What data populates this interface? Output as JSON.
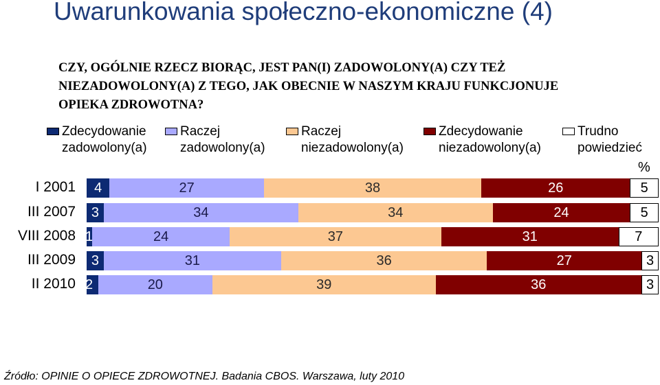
{
  "slide_title": "Uwarunkowania społeczno-ekonomiczne (4)",
  "question_lines": [
    "CZY, OGÓLNIE RZECZ BIORĄC, JEST PAN(I) ZADOWOLONY(A) CZY TEŻ",
    "NIEZADOWOLONY(A) Z TEGO, JAK OBECNIE W NASZYM KRAJU FUNKCJONUJE",
    "OPIEKA ZDROWOTNA?"
  ],
  "unit_label": "%",
  "source": "Źródło: OPINIE O OPIECE ZDROWOTNEJ. Badania CBOS. Warszawa, luty 2010",
  "chart_data": {
    "type": "bar",
    "orientation": "horizontal",
    "stacked": true,
    "normalized_percent": true,
    "legend_position": "top",
    "grid": false,
    "xlim": [
      0,
      100
    ],
    "categories": [
      "I 2001",
      "III 2007",
      "VIII 2008",
      "III 2009",
      "II 2010"
    ],
    "series": [
      {
        "name": "Zdecydowanie\nzadowolony(a)",
        "color": "#0d2a73",
        "label_color": "#ffffff",
        "values": [
          4,
          3,
          1,
          3,
          2
        ]
      },
      {
        "name": "Raczej\nzadowolony(a)",
        "color": "#a9a9ff",
        "label_color": "#1a1a4a",
        "values": [
          27,
          34,
          24,
          31,
          20
        ]
      },
      {
        "name": "Raczej\nniezadowolony(a)",
        "color": "#fcc892",
        "label_color": "#2a2a2a",
        "values": [
          38,
          34,
          37,
          36,
          39
        ]
      },
      {
        "name": "Zdecydowanie\nniezadowolony(a)",
        "color": "#800000",
        "label_color": "#ffffff",
        "values": [
          26,
          24,
          31,
          27,
          36
        ]
      },
      {
        "name": "Trudno\npowiedzieć",
        "color": "#ffffff",
        "label_color": "#000000",
        "values": [
          5,
          5,
          7,
          3,
          3
        ]
      }
    ]
  }
}
